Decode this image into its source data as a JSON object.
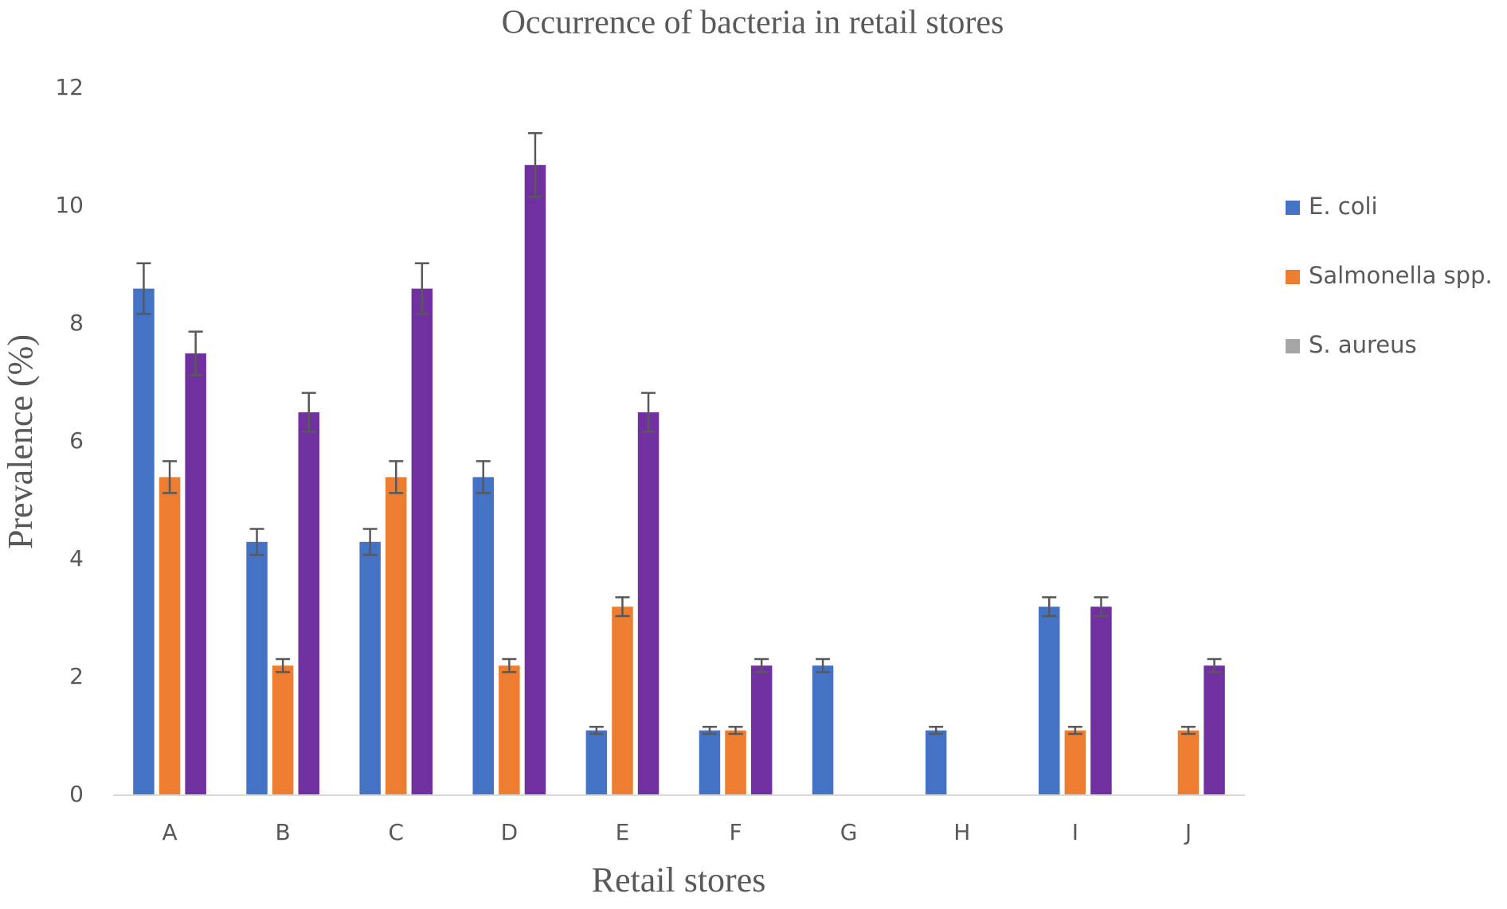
{
  "chart_data": {
    "type": "bar",
    "title": "Occurrence of bacteria in retail stores",
    "x_label": "Retail stores",
    "y_label": "Prevalence (%)",
    "categories": [
      "A",
      "B",
      "C",
      "D",
      "E",
      "F",
      "G",
      "H",
      "I",
      "J"
    ],
    "series": [
      {
        "name": "E. coli",
        "color": "#4472c4",
        "legend_color": "#4472c4",
        "values": [
          8.6,
          4.3,
          4.3,
          5.4,
          1.1,
          1.1,
          2.2,
          1.1,
          3.2,
          0
        ],
        "errors": [
          0.43,
          0.22,
          0.22,
          0.27,
          0.06,
          0.06,
          0.11,
          0.06,
          0.16,
          null
        ]
      },
      {
        "name": "Salmonella spp.",
        "color": "#ed7d31",
        "legend_color": "#ed7d31",
        "values": [
          5.4,
          2.2,
          5.4,
          2.2,
          3.2,
          1.1,
          0,
          0,
          1.1,
          1.1
        ],
        "errors": [
          0.27,
          0.11,
          0.27,
          0.11,
          0.16,
          0.06,
          null,
          null,
          0.06,
          0.06
        ]
      },
      {
        "name": "S. aureus",
        "color": "#7030a0",
        "legend_color": "#a5a5a5",
        "values": [
          7.5,
          6.5,
          8.6,
          10.7,
          6.5,
          2.2,
          0,
          0,
          3.2,
          2.2
        ],
        "errors": [
          0.37,
          0.33,
          0.43,
          0.54,
          0.33,
          0.11,
          null,
          null,
          0.16,
          0.11
        ]
      }
    ],
    "ylim": [
      0,
      12
    ],
    "yticks": [
      0,
      2,
      4,
      6,
      8,
      10,
      12
    ],
    "grid": false,
    "legend": "right"
  }
}
